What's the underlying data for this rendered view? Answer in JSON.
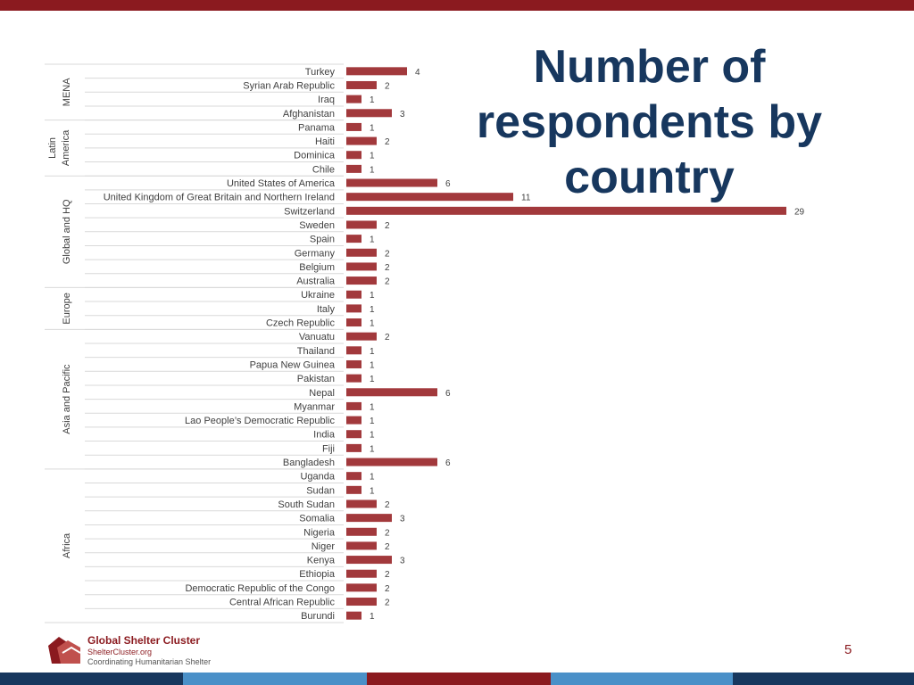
{
  "slide": {
    "title": "Number of respondents by country",
    "page_number": "5"
  },
  "footer": {
    "org_name": "Global Shelter Cluster",
    "site": "ShelterCluster.org",
    "tagline": "Coordinating Humanitarian Shelter"
  },
  "colors": {
    "top_bar": "#8b1a1f",
    "bar": "#a2393c",
    "title": "#17375e",
    "strip": [
      "#17375e",
      "#4a90c8",
      "#8b1a1f",
      "#4a90c8",
      "#17375e"
    ]
  },
  "chart_data": {
    "type": "bar",
    "orientation": "horizontal",
    "title": "Number of respondents by country",
    "data_labels": true,
    "grid": false,
    "groups": [
      {
        "name": "MENA",
        "count": 4
      },
      {
        "name": "Latin America",
        "count": 4
      },
      {
        "name": "Global and HQ",
        "count": 8
      },
      {
        "name": "Europe",
        "count": 3
      },
      {
        "name": "Asia and Pacific",
        "count": 10
      },
      {
        "name": "Africa",
        "count": 11
      }
    ],
    "categories": [
      "Turkey",
      "Syrian Arab Republic",
      "Iraq",
      "Afghanistan",
      "Panama",
      "Haiti",
      "Dominica",
      "Chile",
      "United States of America",
      "United Kingdom of Great Britain and Northern Ireland",
      "Switzerland",
      "Sweden",
      "Spain",
      "Germany",
      "Belgium",
      "Australia",
      "Ukraine",
      "Italy",
      "Czech Republic",
      "Vanuatu",
      "Thailand",
      "Papua New Guinea",
      "Pakistan",
      "Nepal",
      "Myanmar",
      "Lao People’s Democratic Republic",
      "India",
      "Fiji",
      "Bangladesh",
      "Uganda",
      "Sudan",
      "South Sudan",
      "Somalia",
      "Nigeria",
      "Niger",
      "Kenya",
      "Ethiopia",
      "Democratic Republic of the Congo",
      "Central African Republic",
      "Burundi"
    ],
    "values": [
      4,
      2,
      1,
      3,
      1,
      2,
      1,
      1,
      6,
      11,
      29,
      2,
      1,
      2,
      2,
      2,
      1,
      1,
      1,
      2,
      1,
      1,
      1,
      6,
      1,
      1,
      1,
      1,
      6,
      1,
      1,
      2,
      3,
      2,
      2,
      3,
      2,
      2,
      2,
      1
    ]
  }
}
